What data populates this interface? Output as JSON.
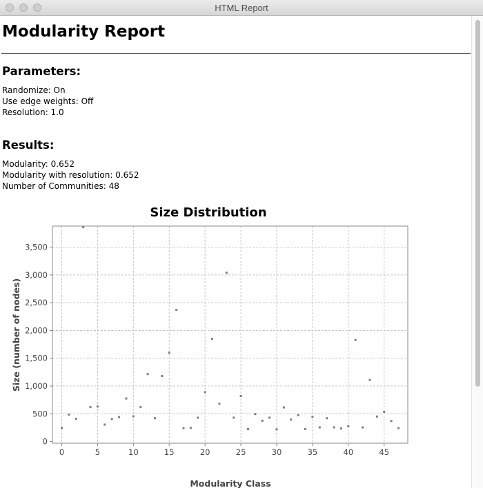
{
  "window": {
    "title": "HTML Report"
  },
  "report": {
    "title": "Modularity Report",
    "parameters_heading": "Parameters:",
    "parameters": [
      "Randomize: On",
      "Use edge weights: Off",
      "Resolution: 1.0"
    ],
    "results_heading": "Results:",
    "results": [
      "Modularity: 0.652",
      "Modularity with resolution: 0.652",
      "Number of Communities: 48"
    ]
  },
  "chart_data": {
    "type": "scatter",
    "title": "Size Distribution",
    "xlabel": "Modularity Class",
    "ylabel": "Size (number of nodes)",
    "x": [
      0,
      1,
      2,
      3,
      4,
      5,
      6,
      7,
      8,
      9,
      10,
      11,
      12,
      13,
      14,
      15,
      16,
      17,
      18,
      19,
      20,
      21,
      22,
      23,
      24,
      25,
      26,
      27,
      28,
      29,
      30,
      31,
      32,
      33,
      34,
      35,
      36,
      37,
      38,
      39,
      40,
      41,
      42,
      43,
      44,
      45,
      46,
      47
    ],
    "y": [
      245,
      485,
      410,
      3860,
      620,
      630,
      305,
      405,
      440,
      775,
      455,
      620,
      1215,
      420,
      1180,
      1600,
      2370,
      240,
      245,
      430,
      890,
      1850,
      680,
      3040,
      430,
      820,
      225,
      495,
      375,
      430,
      220,
      615,
      395,
      475,
      225,
      445,
      255,
      420,
      255,
      235,
      275,
      1830,
      255,
      1110,
      450,
      535,
      370,
      240
    ],
    "xlim": [
      -1.3,
      48.3
    ],
    "ylim": [
      -30,
      3880
    ],
    "xticks": [
      "0",
      "5",
      "10",
      "15",
      "20",
      "25",
      "30",
      "35",
      "40",
      "45"
    ],
    "yticks": [
      "0",
      "500",
      "1,000",
      "1,500",
      "2,000",
      "2,500",
      "3,000",
      "3,500"
    ],
    "grid": true,
    "point_color": "#7f7f7f"
  }
}
